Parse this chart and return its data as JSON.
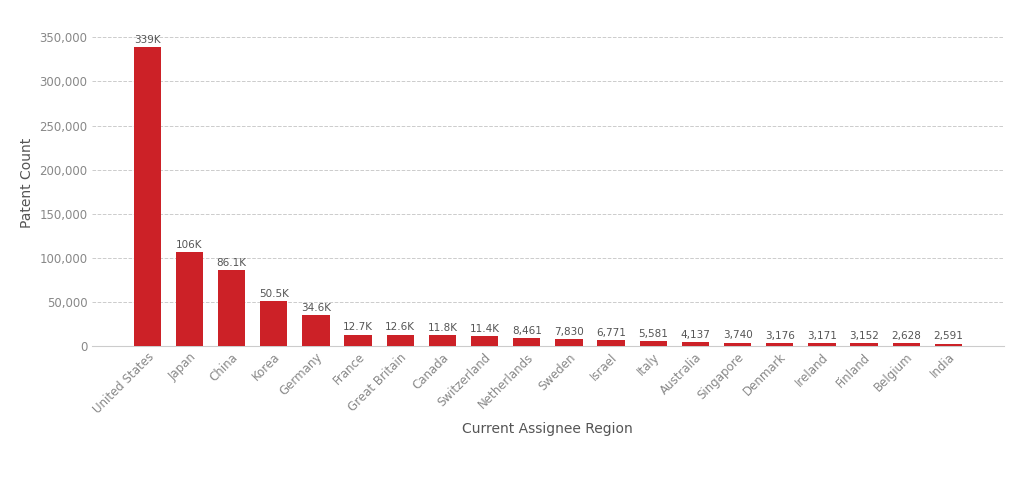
{
  "categories": [
    "United States",
    "Japan",
    "China",
    "Korea",
    "Germany",
    "France",
    "Great Britain",
    "Canada",
    "Switzerland",
    "Netherlands",
    "Sweden",
    "Israel",
    "Italy",
    "Australia",
    "Singapore",
    "Denmark",
    "Ireland",
    "Finland",
    "Belgium",
    "India"
  ],
  "values": [
    339000,
    106000,
    86100,
    50500,
    34600,
    12700,
    12600,
    11800,
    11400,
    8461,
    7830,
    6771,
    5581,
    4137,
    3740,
    3176,
    3171,
    3152,
    2628,
    2591
  ],
  "bar_labels": [
    "339K",
    "106K",
    "86.1K",
    "50.5K",
    "34.6K",
    "12.7K",
    "12.6K",
    "11.8K",
    "11.4K",
    "8,461",
    "7,830",
    "6,771",
    "5,581",
    "4,137",
    "3,740",
    "3,176",
    "3,171",
    "3,152",
    "2,628",
    "2,591"
  ],
  "bar_color": "#CC2127",
  "ylabel": "Patent Count",
  "xlabel": "Current Assignee Region",
  "ylim": [
    0,
    370000
  ],
  "yticks": [
    0,
    50000,
    100000,
    150000,
    200000,
    250000,
    300000,
    350000
  ],
  "ytick_labels": [
    "0",
    "50,000",
    "100,000",
    "150,000",
    "200,000",
    "250,000",
    "300,000",
    "350,000"
  ],
  "background_color": "#ffffff",
  "grid_color": "#cccccc",
  "bar_label_fontsize": 7.5,
  "axis_label_fontsize": 10,
  "tick_label_fontsize": 8.5,
  "bar_label_color": "#555555",
  "axis_label_color": "#555555",
  "tick_color": "#888888"
}
